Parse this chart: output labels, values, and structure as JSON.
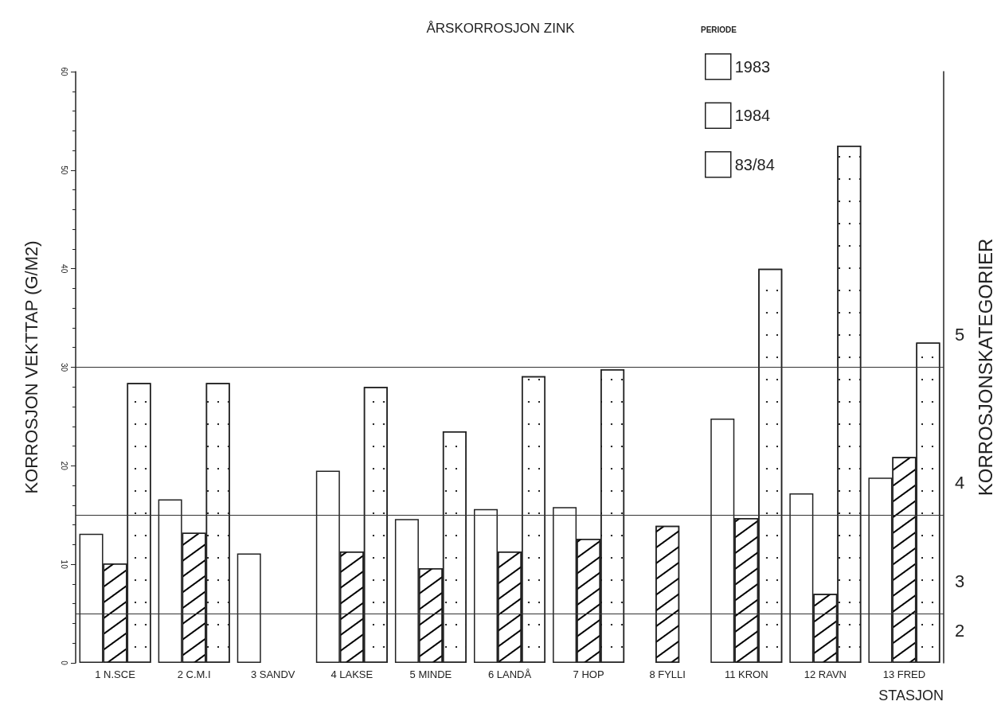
{
  "chart_data": {
    "type": "bar",
    "title": "ÅRSKORROSJON ZINK",
    "xlabel": "STASJON",
    "ylabel": "KORROSJON VEKTTAP (G/M2)",
    "y2label": "KORROSJONSKATEGORIER",
    "legend_title": "PERIODE",
    "categories": [
      "1 N.SCE",
      "2 C.M.I",
      "3 SANDV",
      "4 LAKSE",
      "5 MINDE",
      "6 LANDÅ",
      "7 HOP",
      "8 FYLLI",
      "11 KRON",
      "12 RAVN",
      "13 FRED"
    ],
    "series": [
      {
        "name": "1983",
        "color": "#ffffff",
        "values": [
          13.1,
          16.6,
          11.1,
          19.5,
          14.6,
          15.6,
          15.8,
          null,
          24.8,
          17.2,
          18.8
        ]
      },
      {
        "name": "1984",
        "color": "#ffffff",
        "values": [
          10.1,
          13.2,
          null,
          11.3,
          9.6,
          11.3,
          12.6,
          13.9,
          14.7,
          7.0,
          20.9
        ]
      },
      {
        "name": "83/84",
        "color": "#ffffff",
        "values": [
          28.4,
          28.4,
          null,
          28.0,
          23.5,
          29.1,
          29.8,
          null,
          40.0,
          52.5,
          32.5
        ]
      }
    ],
    "ylim": [
      0,
      60
    ],
    "yticks": [
      0,
      10,
      20,
      30,
      40,
      50,
      60
    ],
    "ref_lines": [
      {
        "axis": "y",
        "value": 5,
        "label": null,
        "color": "#333333"
      },
      {
        "axis": "y",
        "value": 15,
        "label": null,
        "color": "#333333"
      },
      {
        "axis": "y",
        "value": 30,
        "label": null,
        "color": "#333333"
      }
    ],
    "annotations": [
      "2",
      "3",
      "4",
      "5"
    ],
    "grid": false,
    "legend": "top right"
  }
}
